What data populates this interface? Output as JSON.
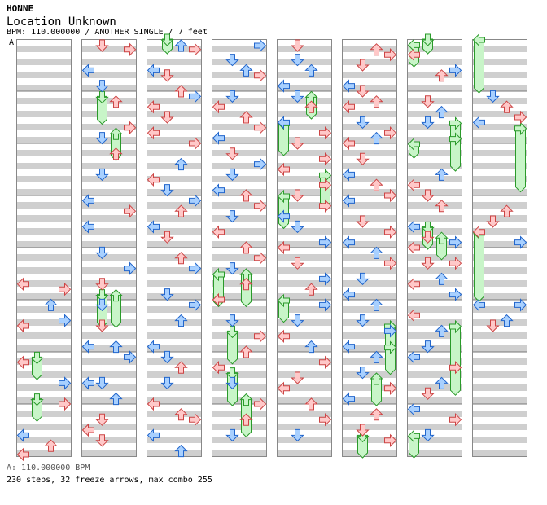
{
  "header": {
    "artist": "HONNE",
    "title": "Location Unknown",
    "meta": "BPM: 110.000000 / ANOTHER SINGLE / 7 feet"
  },
  "section_label": "A",
  "footer": {
    "bpm_line": "A: 110.000000 BPM",
    "stats_line": "230 steps, 32 freeze arrows, max combo 255"
  },
  "colors": {
    "stripe": "#cfcfcf",
    "frame": "#888888",
    "red_fill": "#ffc8c8",
    "red_stroke": "#cc4444",
    "blue_fill": "#a8d0ff",
    "blue_stroke": "#2266cc",
    "freeze_fill": "#c8f5c8",
    "freeze_stroke": "#2a9a2a"
  },
  "chart_data": {
    "type": "step-chart",
    "columns": 8,
    "lanes": [
      "left",
      "down",
      "up",
      "right"
    ],
    "measures_per_column": 8,
    "notes": [
      [
        0,
        0,
        4.7,
        "n"
      ],
      [
        0,
        0,
        5.5,
        "n"
      ],
      [
        0,
        0,
        6.2,
        "n"
      ],
      [
        0,
        0,
        7.6,
        "n"
      ],
      [
        0,
        0,
        8.7,
        "n"
      ],
      [
        0,
        3,
        4.8,
        "n"
      ],
      [
        0,
        3,
        5.4,
        "n"
      ],
      [
        0,
        3,
        6.6,
        "n"
      ],
      [
        0,
        3,
        7.0,
        "n"
      ],
      [
        0,
        2,
        5.1,
        "n"
      ],
      [
        0,
        2,
        7.8,
        "n"
      ],
      [
        1,
        1,
        0.0,
        "n"
      ],
      [
        1,
        3,
        0.2,
        "n"
      ],
      [
        1,
        0,
        0.6,
        "n"
      ],
      [
        1,
        1,
        0.9,
        "n"
      ],
      [
        1,
        2,
        1.2,
        "n"
      ],
      [
        1,
        3,
        1.7,
        "n"
      ],
      [
        1,
        1,
        1.9,
        "n"
      ],
      [
        1,
        2,
        2.2,
        "n"
      ],
      [
        1,
        1,
        2.6,
        "n"
      ],
      [
        1,
        0,
        3.1,
        "n"
      ],
      [
        1,
        3,
        3.3,
        "n"
      ],
      [
        1,
        0,
        3.6,
        "n"
      ],
      [
        1,
        1,
        4.1,
        "n"
      ],
      [
        1,
        3,
        4.4,
        "n"
      ],
      [
        1,
        1,
        4.7,
        "n"
      ],
      [
        1,
        1,
        5.1,
        "n"
      ],
      [
        1,
        1,
        5.5,
        "n"
      ],
      [
        1,
        0,
        5.9,
        "n"
      ],
      [
        1,
        2,
        5.9,
        "n"
      ],
      [
        1,
        3,
        6.1,
        "n"
      ],
      [
        1,
        0,
        6.6,
        "n"
      ],
      [
        1,
        1,
        6.6,
        "n"
      ],
      [
        1,
        2,
        6.9,
        "n"
      ],
      [
        1,
        1,
        7.3,
        "n"
      ],
      [
        1,
        0,
        7.5,
        "n"
      ],
      [
        1,
        1,
        7.7,
        "n"
      ],
      [
        2,
        2,
        0.1,
        "n"
      ],
      [
        2,
        3,
        0.2,
        "n"
      ],
      [
        2,
        0,
        0.6,
        "n"
      ],
      [
        2,
        1,
        0.7,
        "n"
      ],
      [
        2,
        2,
        1.0,
        "n"
      ],
      [
        2,
        3,
        1.1,
        "n"
      ],
      [
        2,
        0,
        1.3,
        "n"
      ],
      [
        2,
        1,
        1.5,
        "n"
      ],
      [
        2,
        0,
        1.8,
        "n"
      ],
      [
        2,
        3,
        2.0,
        "n"
      ],
      [
        2,
        2,
        2.4,
        "n"
      ],
      [
        2,
        0,
        2.7,
        "n"
      ],
      [
        2,
        1,
        2.9,
        "n"
      ],
      [
        2,
        3,
        3.1,
        "n"
      ],
      [
        2,
        2,
        3.3,
        "n"
      ],
      [
        2,
        0,
        3.6,
        "n"
      ],
      [
        2,
        1,
        3.8,
        "n"
      ],
      [
        2,
        2,
        4.2,
        "n"
      ],
      [
        2,
        3,
        4.4,
        "n"
      ],
      [
        2,
        1,
        4.9,
        "n"
      ],
      [
        2,
        3,
        5.1,
        "n"
      ],
      [
        2,
        2,
        5.4,
        "n"
      ],
      [
        2,
        0,
        5.9,
        "n"
      ],
      [
        2,
        1,
        6.1,
        "n"
      ],
      [
        2,
        2,
        6.3,
        "n"
      ],
      [
        2,
        1,
        6.6,
        "n"
      ],
      [
        2,
        0,
        7.0,
        "n"
      ],
      [
        2,
        2,
        7.2,
        "n"
      ],
      [
        2,
        3,
        7.3,
        "n"
      ],
      [
        2,
        0,
        7.6,
        "n"
      ],
      [
        2,
        2,
        7.9,
        "n"
      ],
      [
        3,
        3,
        0.1,
        "n"
      ],
      [
        3,
        1,
        0.4,
        "n"
      ],
      [
        3,
        2,
        0.6,
        "n"
      ],
      [
        3,
        3,
        0.7,
        "n"
      ],
      [
        3,
        1,
        1.1,
        "n"
      ],
      [
        3,
        0,
        1.3,
        "n"
      ],
      [
        3,
        2,
        1.5,
        "n"
      ],
      [
        3,
        3,
        1.7,
        "n"
      ],
      [
        3,
        0,
        1.9,
        "n"
      ],
      [
        3,
        1,
        2.2,
        "n"
      ],
      [
        3,
        3,
        2.4,
        "n"
      ],
      [
        3,
        1,
        2.6,
        "n"
      ],
      [
        3,
        0,
        2.9,
        "n"
      ],
      [
        3,
        2,
        3.0,
        "n"
      ],
      [
        3,
        3,
        3.2,
        "n"
      ],
      [
        3,
        1,
        3.4,
        "n"
      ],
      [
        3,
        0,
        3.7,
        "n"
      ],
      [
        3,
        2,
        4.0,
        "n"
      ],
      [
        3,
        3,
        4.2,
        "n"
      ],
      [
        3,
        1,
        4.4,
        "n"
      ],
      [
        3,
        2,
        4.7,
        "n"
      ],
      [
        3,
        0,
        5.0,
        "n"
      ],
      [
        3,
        1,
        5.4,
        "n"
      ],
      [
        3,
        3,
        5.7,
        "n"
      ],
      [
        3,
        2,
        6.0,
        "n"
      ],
      [
        3,
        0,
        6.3,
        "n"
      ],
      [
        3,
        1,
        6.6,
        "n"
      ],
      [
        3,
        3,
        7.0,
        "n"
      ],
      [
        3,
        2,
        7.3,
        "n"
      ],
      [
        3,
        1,
        7.6,
        "n"
      ],
      [
        4,
        1,
        0.0,
        "n"
      ],
      [
        4,
        1,
        0.4,
        "n"
      ],
      [
        4,
        2,
        0.6,
        "n"
      ],
      [
        4,
        0,
        0.9,
        "n"
      ],
      [
        4,
        1,
        1.1,
        "n"
      ],
      [
        4,
        2,
        1.3,
        "n"
      ],
      [
        4,
        0,
        1.6,
        "n"
      ],
      [
        4,
        3,
        1.8,
        "n"
      ],
      [
        4,
        1,
        2.0,
        "n"
      ],
      [
        4,
        3,
        2.3,
        "n"
      ],
      [
        4,
        0,
        2.5,
        "n"
      ],
      [
        4,
        3,
        2.8,
        "n"
      ],
      [
        4,
        1,
        3.0,
        "n"
      ],
      [
        4,
        3,
        3.2,
        "n"
      ],
      [
        4,
        0,
        3.4,
        "n"
      ],
      [
        4,
        1,
        3.6,
        "n"
      ],
      [
        4,
        3,
        3.9,
        "n"
      ],
      [
        4,
        0,
        4.0,
        "n"
      ],
      [
        4,
        1,
        4.3,
        "n"
      ],
      [
        4,
        3,
        4.6,
        "n"
      ],
      [
        4,
        2,
        4.8,
        "n"
      ],
      [
        4,
        3,
        5.1,
        "n"
      ],
      [
        4,
        1,
        5.4,
        "n"
      ],
      [
        4,
        0,
        5.7,
        "n"
      ],
      [
        4,
        2,
        5.9,
        "n"
      ],
      [
        4,
        3,
        6.2,
        "n"
      ],
      [
        4,
        1,
        6.5,
        "n"
      ],
      [
        4,
        0,
        6.7,
        "n"
      ],
      [
        4,
        2,
        7.0,
        "n"
      ],
      [
        4,
        3,
        7.3,
        "n"
      ],
      [
        4,
        1,
        7.6,
        "n"
      ],
      [
        5,
        2,
        0.2,
        "n"
      ],
      [
        5,
        1,
        0.5,
        "n"
      ],
      [
        5,
        3,
        0.3,
        "n"
      ],
      [
        5,
        0,
        0.9,
        "n"
      ],
      [
        5,
        1,
        1.0,
        "n"
      ],
      [
        5,
        2,
        1.2,
        "n"
      ],
      [
        5,
        0,
        1.3,
        "n"
      ],
      [
        5,
        1,
        1.6,
        "n"
      ],
      [
        5,
        3,
        1.8,
        "n"
      ],
      [
        5,
        2,
        1.9,
        "n"
      ],
      [
        5,
        0,
        2.0,
        "n"
      ],
      [
        5,
        1,
        2.3,
        "n"
      ],
      [
        5,
        0,
        2.6,
        "n"
      ],
      [
        5,
        2,
        2.8,
        "n"
      ],
      [
        5,
        3,
        3.0,
        "n"
      ],
      [
        5,
        0,
        3.1,
        "n"
      ],
      [
        5,
        1,
        3.5,
        "n"
      ],
      [
        5,
        3,
        3.7,
        "n"
      ],
      [
        5,
        0,
        3.9,
        "n"
      ],
      [
        5,
        2,
        4.1,
        "n"
      ],
      [
        5,
        3,
        4.3,
        "n"
      ],
      [
        5,
        1,
        4.6,
        "n"
      ],
      [
        5,
        0,
        4.9,
        "n"
      ],
      [
        5,
        2,
        5.1,
        "n"
      ],
      [
        5,
        1,
        5.4,
        "n"
      ],
      [
        5,
        3,
        5.6,
        "n"
      ],
      [
        5,
        0,
        5.9,
        "n"
      ],
      [
        5,
        2,
        6.1,
        "n"
      ],
      [
        5,
        1,
        6.4,
        "n"
      ],
      [
        5,
        3,
        6.7,
        "n"
      ],
      [
        5,
        0,
        6.9,
        "n"
      ],
      [
        5,
        2,
        7.2,
        "n"
      ],
      [
        5,
        1,
        7.5,
        "n"
      ],
      [
        5,
        3,
        7.7,
        "n"
      ],
      [
        6,
        0,
        0.3,
        "n"
      ],
      [
        6,
        2,
        0.7,
        "n"
      ],
      [
        6,
        3,
        0.6,
        "n"
      ],
      [
        6,
        1,
        1.2,
        "n"
      ],
      [
        6,
        2,
        1.4,
        "n"
      ],
      [
        6,
        1,
        1.6,
        "n"
      ],
      [
        6,
        2,
        2.6,
        "n"
      ],
      [
        6,
        0,
        2.8,
        "n"
      ],
      [
        6,
        1,
        3.0,
        "n"
      ],
      [
        6,
        2,
        3.2,
        "n"
      ],
      [
        6,
        0,
        3.6,
        "n"
      ],
      [
        6,
        1,
        3.8,
        "n"
      ],
      [
        6,
        3,
        3.9,
        "n"
      ],
      [
        6,
        0,
        4.0,
        "n"
      ],
      [
        6,
        1,
        4.3,
        "n"
      ],
      [
        6,
        0,
        4.7,
        "n"
      ],
      [
        6,
        3,
        4.9,
        "n"
      ],
      [
        6,
        3,
        4.3,
        "n"
      ],
      [
        6,
        2,
        4.6,
        "n"
      ],
      [
        6,
        0,
        5.3,
        "n"
      ],
      [
        6,
        2,
        5.6,
        "n"
      ],
      [
        6,
        1,
        5.9,
        "n"
      ],
      [
        6,
        0,
        6.1,
        "n"
      ],
      [
        6,
        3,
        6.3,
        "n"
      ],
      [
        6,
        2,
        6.6,
        "n"
      ],
      [
        6,
        1,
        6.8,
        "n"
      ],
      [
        6,
        0,
        7.1,
        "n"
      ],
      [
        6,
        3,
        7.3,
        "n"
      ],
      [
        6,
        1,
        7.6,
        "n"
      ],
      [
        7,
        1,
        1.1,
        "n"
      ],
      [
        7,
        2,
        1.3,
        "n"
      ],
      [
        7,
        3,
        1.5,
        "n"
      ],
      [
        7,
        0,
        1.6,
        "n"
      ],
      [
        7,
        2,
        3.3,
        "n"
      ],
      [
        7,
        1,
        3.5,
        "n"
      ],
      [
        7,
        0,
        3.7,
        "n"
      ],
      [
        7,
        3,
        3.9,
        "n"
      ],
      [
        7,
        0,
        5.1,
        "n"
      ],
      [
        7,
        3,
        5.1,
        "n"
      ],
      [
        7,
        2,
        5.4,
        "n"
      ],
      [
        7,
        1,
        5.5,
        "n"
      ]
    ],
    "freezes": [
      [
        0,
        1,
        6.1,
        6.5
      ],
      [
        0,
        1,
        6.9,
        7.3
      ],
      [
        1,
        1,
        1.1,
        1.6
      ],
      [
        1,
        2,
        1.8,
        2.3
      ],
      [
        1,
        1,
        4.9,
        5.5
      ],
      [
        1,
        2,
        4.9,
        5.5
      ],
      [
        2,
        1,
        0.0,
        0.0
      ],
      [
        3,
        0,
        4.5,
        5.1
      ],
      [
        3,
        2,
        4.5,
        5.1
      ],
      [
        3,
        1,
        5.6,
        6.2
      ],
      [
        3,
        1,
        6.4,
        7.0
      ],
      [
        3,
        2,
        6.9,
        7.6
      ],
      [
        4,
        0,
        1.6,
        2.2
      ],
      [
        4,
        3,
        2.6,
        3.2
      ],
      [
        4,
        0,
        3.0,
        3.6
      ],
      [
        4,
        0,
        5.0,
        5.4
      ],
      [
        4,
        2,
        1.1,
        1.5
      ],
      [
        5,
        2,
        6.5,
        7.0
      ],
      [
        5,
        3,
        5.5,
        6.0
      ],
      [
        5,
        1,
        7.6,
        8.0
      ],
      [
        5,
        3,
        5.9,
        6.4
      ],
      [
        6,
        0,
        0.1,
        0.5
      ],
      [
        6,
        1,
        0.0,
        0.2
      ],
      [
        6,
        3,
        1.6,
        2.0
      ],
      [
        6,
        0,
        2.0,
        2.2
      ],
      [
        6,
        2,
        3.8,
        4.2
      ],
      [
        6,
        3,
        1.9,
        2.5
      ],
      [
        6,
        1,
        3.6,
        4.0
      ],
      [
        6,
        3,
        5.5,
        6.8
      ],
      [
        6,
        0,
        7.6,
        8.0
      ],
      [
        7,
        0,
        0.0,
        1.0
      ],
      [
        7,
        0,
        3.7,
        5.0
      ],
      [
        7,
        3,
        1.7,
        2.9
      ]
    ]
  }
}
